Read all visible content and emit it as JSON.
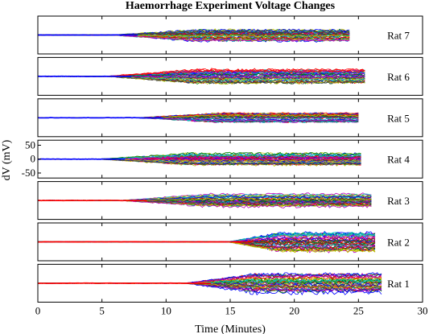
{
  "chart_data": {
    "type": "line",
    "title": "Haemorrhage Experiment Voltage Changes",
    "xlabel": "Time (Minutes)",
    "ylabel": "dV (mV)",
    "xlim": [
      0,
      30
    ],
    "xticks": [
      "0",
      "5",
      "10",
      "15",
      "20",
      "25",
      "30"
    ],
    "ylim": [
      -50,
      50
    ],
    "yticks_shown_on": "Rat 4",
    "yticks": [
      "50",
      "0",
      "-50"
    ],
    "grid": false,
    "legend": "none",
    "panels": [
      {
        "name": "Rat 7",
        "onset": 5.8,
        "end": 24.3,
        "amp": 18,
        "base": "#0000ff"
      },
      {
        "name": "Rat 6",
        "onset": 5.3,
        "end": 25.5,
        "amp": 22,
        "base": "#0000ff"
      },
      {
        "name": "Rat 5",
        "onset": 7.8,
        "end": 25.0,
        "amp": 14,
        "base": "#0000ff"
      },
      {
        "name": "Rat 4",
        "onset": 4.8,
        "end": 25.2,
        "amp": 18,
        "base": "#0000ff"
      },
      {
        "name": "Rat 3",
        "onset": 6.5,
        "end": 26.0,
        "amp": 22,
        "base": "#ff0000"
      },
      {
        "name": "Rat 2",
        "onset": 14.8,
        "end": 26.3,
        "amp": 28,
        "base": "#ff0000"
      },
      {
        "name": "Rat 1",
        "onset": 11.5,
        "end": 26.8,
        "amp": 30,
        "base": "#ff0000"
      }
    ],
    "series_colors": [
      "#0000ff",
      "#008000",
      "#ff0000",
      "#00bfbf",
      "#bf00bf",
      "#bfbf00",
      "#404040"
    ]
  }
}
